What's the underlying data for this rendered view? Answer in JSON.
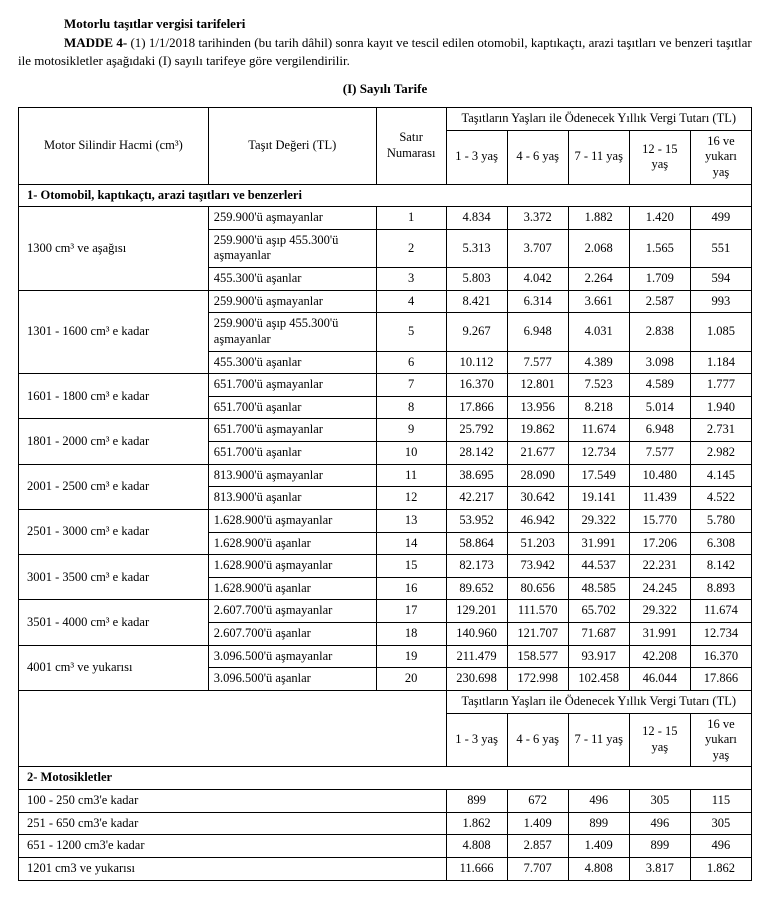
{
  "heading": "Motorlu taşıtlar vergisi tarifeleri",
  "madde_bold": "MADDE 4-",
  "madde_text": " (1) 1/1/2018 tarihinden (bu tarih dâhil) sonra kayıt ve tescil edilen otomobil, kaptıkaçtı, arazi taşıtları ve benzeri taşıtlar ile motosikletler aşağıdaki (I) sayılı tarifeye göre vergilendirilir.",
  "tarife_title": "(I) Sayılı Tarife",
  "headers": {
    "engine": "Motor Silindir Hacmi (cm³)",
    "vehicle_value": "Taşıt Değeri (TL)",
    "row_no": "Satır Numarası",
    "age_title": "Taşıtların Yaşları ile Ödenecek Yıllık Vergi Tutarı (TL)",
    "age_title2": "Taşıtların Yaşları ile Ödenecek Yıllık Vergi Tutarı (TL)",
    "ages": [
      "1 - 3 yaş",
      "4 - 6 yaş",
      "7 - 11 yaş",
      "12 - 15 yaş",
      "16 ve yukarı yaş"
    ]
  },
  "section1_title": "1- Otomobil, kaptıkaçtı, arazi taşıtları ve benzerleri",
  "section2_title": "2- Motosikletler",
  "groups": [
    {
      "engine": "1300 cm³ ve aşağısı",
      "rows": [
        {
          "val": "259.900'ü aşmayanlar",
          "no": "1",
          "v": [
            "4.834",
            "3.372",
            "1.882",
            "1.420",
            "499"
          ]
        },
        {
          "val": "259.900'ü aşıp 455.300'ü aşmayanlar",
          "no": "2",
          "v": [
            "5.313",
            "3.707",
            "2.068",
            "1.565",
            "551"
          ]
        },
        {
          "val": "455.300'ü aşanlar",
          "no": "3",
          "v": [
            "5.803",
            "4.042",
            "2.264",
            "1.709",
            "594"
          ]
        }
      ]
    },
    {
      "engine": "1301 - 1600 cm³ e kadar",
      "rows": [
        {
          "val": "259.900'ü aşmayanlar",
          "no": "4",
          "v": [
            "8.421",
            "6.314",
            "3.661",
            "2.587",
            "993"
          ]
        },
        {
          "val": "259.900'ü aşıp 455.300'ü aşmayanlar",
          "no": "5",
          "v": [
            "9.267",
            "6.948",
            "4.031",
            "2.838",
            "1.085"
          ]
        },
        {
          "val": "455.300'ü aşanlar",
          "no": "6",
          "v": [
            "10.112",
            "7.577",
            "4.389",
            "3.098",
            "1.184"
          ]
        }
      ]
    },
    {
      "engine": "1601 - 1800 cm³ e kadar",
      "rows": [
        {
          "val": "651.700'ü aşmayanlar",
          "no": "7",
          "v": [
            "16.370",
            "12.801",
            "7.523",
            "4.589",
            "1.777"
          ]
        },
        {
          "val": "651.700'ü aşanlar",
          "no": "8",
          "v": [
            "17.866",
            "13.956",
            "8.218",
            "5.014",
            "1.940"
          ]
        }
      ]
    },
    {
      "engine": "1801 - 2000 cm³ e kadar",
      "rows": [
        {
          "val": "651.700'ü aşmayanlar",
          "no": "9",
          "v": [
            "25.792",
            "19.862",
            "11.674",
            "6.948",
            "2.731"
          ]
        },
        {
          "val": "651.700'ü aşanlar",
          "no": "10",
          "v": [
            "28.142",
            "21.677",
            "12.734",
            "7.577",
            "2.982"
          ]
        }
      ]
    },
    {
      "engine": "2001 - 2500 cm³ e kadar",
      "rows": [
        {
          "val": "813.900'ü aşmayanlar",
          "no": "11",
          "v": [
            "38.695",
            "28.090",
            "17.549",
            "10.480",
            "4.145"
          ]
        },
        {
          "val": "813.900'ü aşanlar",
          "no": "12",
          "v": [
            "42.217",
            "30.642",
            "19.141",
            "11.439",
            "4.522"
          ]
        }
      ]
    },
    {
      "engine": "2501 - 3000 cm³ e kadar",
      "rows": [
        {
          "val": "1.628.900'ü aşmayanlar",
          "no": "13",
          "v": [
            "53.952",
            "46.942",
            "29.322",
            "15.770",
            "5.780"
          ]
        },
        {
          "val": "1.628.900'ü aşanlar",
          "no": "14",
          "v": [
            "58.864",
            "51.203",
            "31.991",
            "17.206",
            "6.308"
          ]
        }
      ]
    },
    {
      "engine": "3001 - 3500 cm³ e kadar",
      "rows": [
        {
          "val": "1.628.900'ü aşmayanlar",
          "no": "15",
          "v": [
            "82.173",
            "73.942",
            "44.537",
            "22.231",
            "8.142"
          ]
        },
        {
          "val": "1.628.900'ü aşanlar",
          "no": "16",
          "v": [
            "89.652",
            "80.656",
            "48.585",
            "24.245",
            "8.893"
          ]
        }
      ]
    },
    {
      "engine": "3501 - 4000 cm³ e kadar",
      "rows": [
        {
          "val": "2.607.700'ü aşmayanlar",
          "no": "17",
          "v": [
            "129.201",
            "111.570",
            "65.702",
            "29.322",
            "11.674"
          ]
        },
        {
          "val": "2.607.700'ü aşanlar",
          "no": "18",
          "v": [
            "140.960",
            "121.707",
            "71.687",
            "31.991",
            "12.734"
          ]
        }
      ]
    },
    {
      "engine": "4001 cm³ ve yukarısı",
      "rows": [
        {
          "val": "3.096.500'ü aşmayanlar",
          "no": "19",
          "v": [
            "211.479",
            "158.577",
            "93.917",
            "42.208",
            "16.370"
          ]
        },
        {
          "val": "3.096.500'ü aşanlar",
          "no": "20",
          "v": [
            "230.698",
            "172.998",
            "102.458",
            "46.044",
            "17.866"
          ]
        }
      ]
    }
  ],
  "moto_rows": [
    {
      "engine": "100 - 250 cm3'e kadar",
      "v": [
        "899",
        "672",
        "496",
        "305",
        "115"
      ]
    },
    {
      "engine": "251 - 650 cm3'e kadar",
      "v": [
        "1.862",
        "1.409",
        "899",
        "496",
        "305"
      ]
    },
    {
      "engine": "651 - 1200 cm3'e kadar",
      "v": [
        "4.808",
        "2.857",
        "1.409",
        "899",
        "496"
      ]
    },
    {
      "engine": "1201 cm3 ve yukarısı",
      "v": [
        "11.666",
        "7.707",
        "4.808",
        "3.817",
        "1.862"
      ]
    }
  ]
}
